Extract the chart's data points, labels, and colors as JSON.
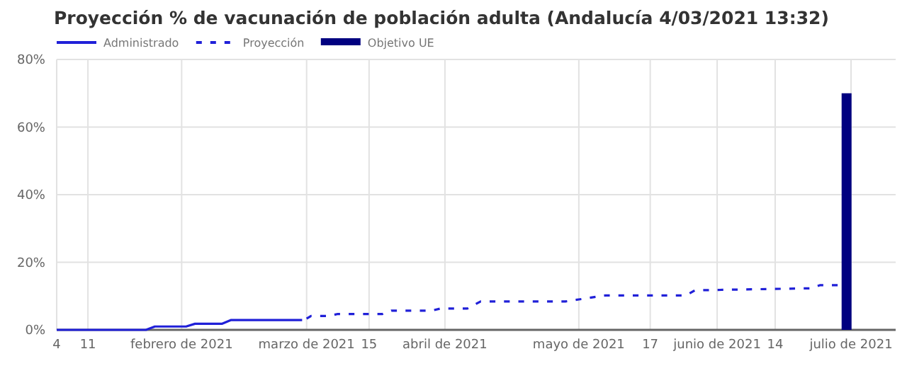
{
  "chart_data": {
    "type": "line",
    "title": "Proyección % de vacunación de población adulta (Andalucía 4/03/2021 13:32)",
    "xlim": [
      "2021-01-04",
      "2021-07-11"
    ],
    "xticks": [
      {
        "value": "2021-01-04",
        "label": "4"
      },
      {
        "value": "2021-01-11",
        "label": "11"
      },
      {
        "value": "2021-02-01",
        "label": "febrero de 2021"
      },
      {
        "value": "2021-03-01",
        "label": "marzo de 2021"
      },
      {
        "value": "2021-03-15",
        "label": "15"
      },
      {
        "value": "2021-04-01",
        "label": "abril de 2021"
      },
      {
        "value": "2021-05-01",
        "label": "mayo de 2021"
      },
      {
        "value": "2021-05-17",
        "label": "17"
      },
      {
        "value": "2021-06-01",
        "label": "junio de 2021"
      },
      {
        "value": "2021-06-14",
        "label": "14"
      },
      {
        "value": "2021-07-01",
        "label": "julio de 2021"
      }
    ],
    "ylim": [
      0,
      80
    ],
    "yticks": [
      {
        "value": 0,
        "label": "0%"
      },
      {
        "value": 20,
        "label": "20%"
      },
      {
        "value": 40,
        "label": "40%"
      },
      {
        "value": 60,
        "label": "60%"
      },
      {
        "value": 80,
        "label": "80%"
      }
    ],
    "grid": true,
    "legend": "top left",
    "marker": "none",
    "series": [
      {
        "name": "Administrado",
        "line_style": "solid",
        "color": "#2020d8",
        "x": [
          "2021-01-04",
          "2021-01-24",
          "2021-01-26",
          "2021-02-02",
          "2021-02-04",
          "2021-02-10",
          "2021-02-12",
          "2021-02-28"
        ],
        "values": [
          0,
          0,
          1.0,
          1.0,
          1.8,
          1.8,
          2.9,
          2.9
        ]
      },
      {
        "name": "Proyección",
        "line_style": "dashed",
        "color": "#2020d8",
        "x": [
          "2021-03-01",
          "2021-03-02",
          "2021-03-06",
          "2021-03-08",
          "2021-03-18",
          "2021-03-20",
          "2021-03-29",
          "2021-03-31",
          "2021-04-06",
          "2021-04-09",
          "2021-04-28",
          "2021-05-01",
          "2021-05-07",
          "2021-05-25",
          "2021-05-27",
          "2021-06-22",
          "2021-06-24",
          "2021-06-28"
        ],
        "values": [
          3.3,
          4.1,
          4.1,
          4.7,
          4.7,
          5.7,
          5.7,
          6.3,
          6.3,
          8.4,
          8.4,
          9.0,
          10.2,
          10.2,
          11.7,
          12.3,
          13.2,
          13.2
        ]
      },
      {
        "name": "Objetivo UE",
        "type": "bar",
        "color": "#000080",
        "x": [
          "2021-06-30"
        ],
        "values": [
          70
        ]
      }
    ]
  }
}
